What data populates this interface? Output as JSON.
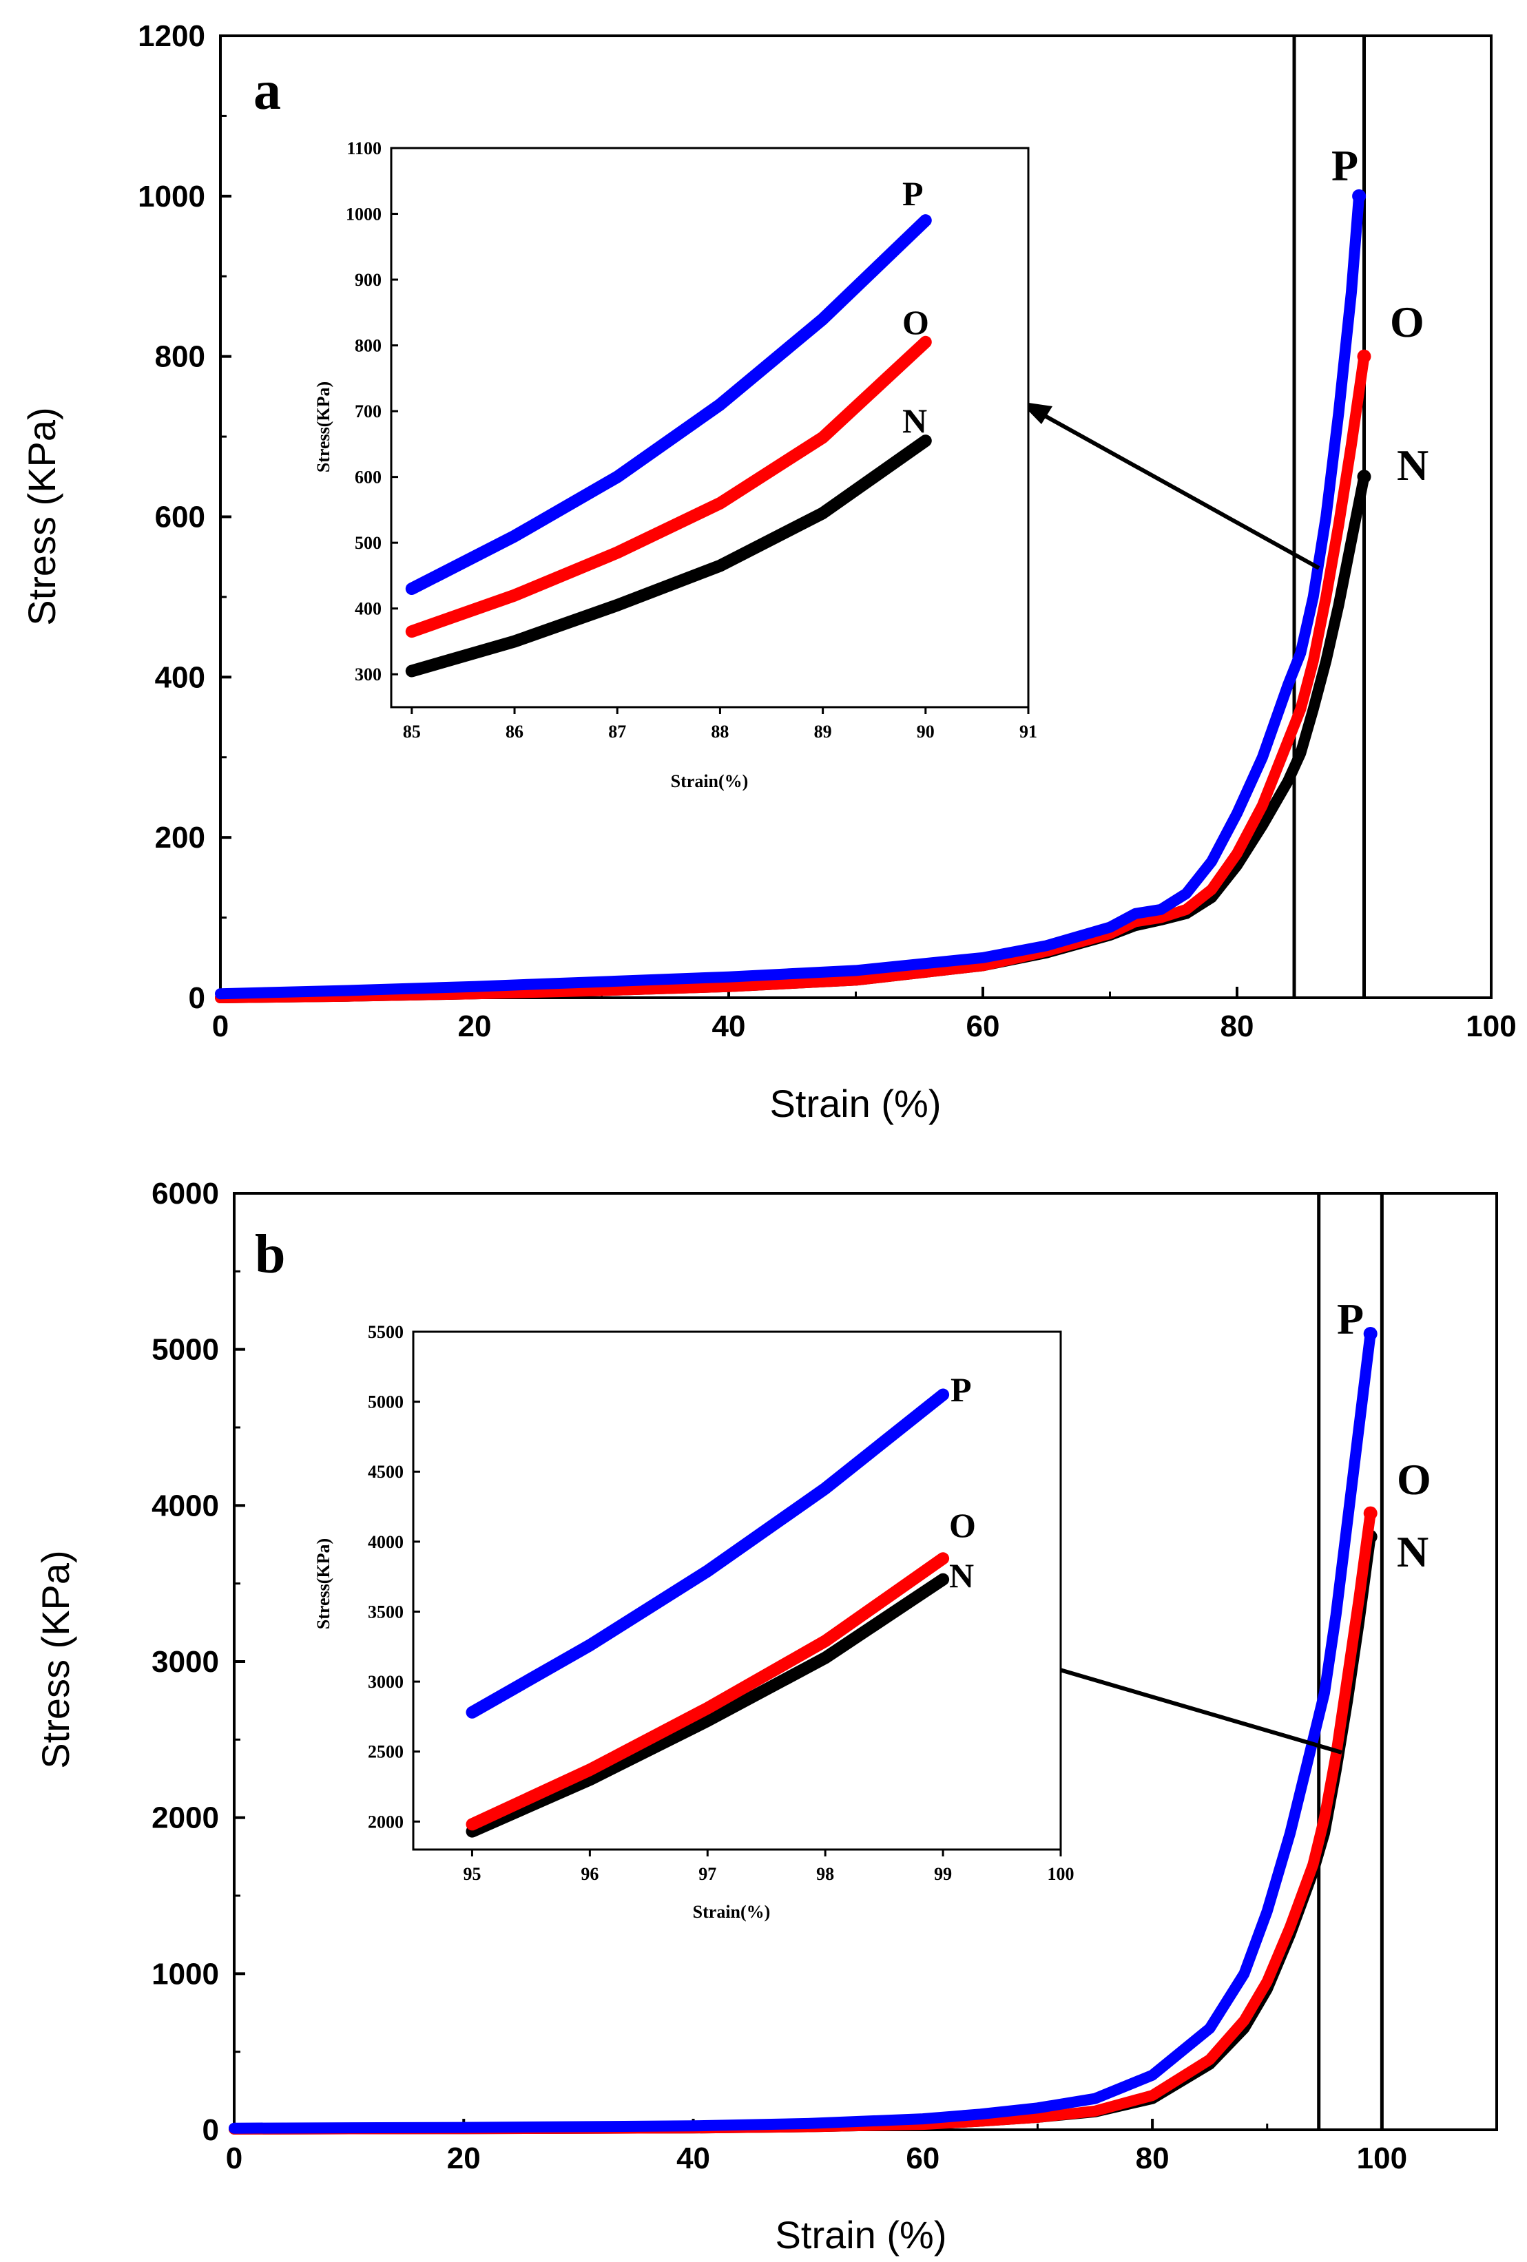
{
  "chart_data": [
    {
      "panel": "a",
      "type": "line",
      "xlabel": "Strain (%)",
      "ylabel": "Stress (KPa)",
      "xlim": [
        0,
        100
      ],
      "ylim": [
        0,
        1200
      ],
      "xticks": [
        0,
        20,
        40,
        60,
        80,
        100
      ],
      "yticks": [
        0,
        200,
        400,
        600,
        800,
        1000,
        1200
      ],
      "vlines": [
        84.5,
        90
      ],
      "series": [
        {
          "name": "P",
          "color": "#0000ff",
          "x": [
            0,
            10,
            20,
            30,
            40,
            50,
            60,
            65,
            70,
            72,
            74,
            76,
            78,
            80,
            82,
            84,
            85,
            86,
            87,
            88,
            89,
            89.6
          ],
          "y": [
            5,
            9,
            14,
            20,
            26,
            34,
            50,
            65,
            88,
            105,
            110,
            130,
            170,
            230,
            300,
            390,
            430,
            500,
            600,
            730,
            880,
            1000
          ]
        },
        {
          "name": "O",
          "color": "#ff0000",
          "x": [
            0,
            10,
            20,
            30,
            40,
            50,
            60,
            65,
            70,
            72,
            74,
            76,
            78,
            80,
            82,
            84,
            85,
            86,
            87,
            88,
            89,
            90
          ],
          "y": [
            0,
            2,
            5,
            9,
            14,
            22,
            40,
            58,
            80,
            95,
            100,
            110,
            135,
            180,
            240,
            320,
            360,
            420,
            500,
            590,
            690,
            800
          ]
        },
        {
          "name": "N",
          "color": "#000000",
          "x": [
            0,
            10,
            20,
            30,
            40,
            50,
            60,
            65,
            70,
            72,
            74,
            76,
            78,
            80,
            82,
            84,
            85,
            86,
            87,
            88,
            89,
            90
          ],
          "y": [
            0,
            2,
            5,
            9,
            14,
            22,
            40,
            56,
            78,
            90,
            97,
            105,
            125,
            165,
            215,
            270,
            305,
            360,
            420,
            490,
            570,
            650
          ]
        }
      ],
      "inset": {
        "xlabel": "Strain(%)",
        "ylabel": "Stress(KPa)",
        "xlim": [
          84.8,
          91
        ],
        "ylim": [
          250,
          1100
        ],
        "xticks": [
          85,
          86,
          87,
          88,
          89,
          90,
          91
        ],
        "yticks": [
          300,
          400,
          500,
          600,
          700,
          800,
          900,
          1000,
          1100
        ],
        "series": [
          {
            "name": "P",
            "color": "#0000ff",
            "x": [
              85,
              86,
              87,
              88,
              89,
              90
            ],
            "y": [
              430,
              510,
              600,
              710,
              840,
              990
            ]
          },
          {
            "name": "O",
            "color": "#ff0000",
            "x": [
              85,
              86,
              87,
              88,
              89,
              90
            ],
            "y": [
              365,
              420,
              485,
              560,
              660,
              805
            ]
          },
          {
            "name": "N",
            "color": "#000000",
            "x": [
              85,
              86,
              87,
              88,
              89,
              90
            ],
            "y": [
              305,
              350,
              405,
              465,
              545,
              655
            ]
          }
        ]
      }
    },
    {
      "panel": "b",
      "type": "line",
      "xlabel": "Strain (%)",
      "ylabel": "Stress (KPa)",
      "xlim": [
        0,
        110
      ],
      "ylim": [
        0,
        6000
      ],
      "xticks": [
        0,
        20,
        40,
        60,
        80,
        100
      ],
      "yticks": [
        0,
        1000,
        2000,
        3000,
        4000,
        5000,
        6000
      ],
      "vlines": [
        94.5,
        100
      ],
      "series": [
        {
          "name": "P",
          "color": "#0000ff",
          "x": [
            0,
            20,
            40,
            50,
            60,
            65,
            70,
            75,
            80,
            85,
            88,
            90,
            92,
            94,
            95,
            96,
            97,
            98,
            99
          ],
          "y": [
            10,
            15,
            25,
            40,
            70,
            100,
            140,
            200,
            350,
            650,
            1000,
            1400,
            1900,
            2500,
            2800,
            3300,
            3900,
            4500,
            5100
          ]
        },
        {
          "name": "O",
          "color": "#ff0000",
          "x": [
            0,
            20,
            40,
            50,
            60,
            65,
            70,
            75,
            80,
            85,
            88,
            90,
            92,
            94,
            95,
            96,
            97,
            98,
            99
          ],
          "y": [
            5,
            8,
            12,
            20,
            35,
            55,
            80,
            120,
            220,
            450,
            700,
            950,
            1300,
            1700,
            2000,
            2400,
            2900,
            3400,
            3950
          ]
        },
        {
          "name": "N",
          "color": "#000000",
          "x": [
            0,
            20,
            40,
            50,
            60,
            65,
            70,
            75,
            80,
            85,
            88,
            90,
            92,
            94,
            95,
            96,
            97,
            98,
            99
          ],
          "y": [
            5,
            8,
            12,
            20,
            35,
            55,
            80,
            115,
            200,
            420,
            650,
            900,
            1250,
            1650,
            1900,
            2300,
            2750,
            3250,
            3800
          ]
        }
      ],
      "inset": {
        "xlabel": "Strain(%)",
        "ylabel": "Stress(KPa)",
        "xlim": [
          94.5,
          100
        ],
        "ylim": [
          1800,
          5500
        ],
        "xticks": [
          95,
          96,
          97,
          98,
          99,
          100
        ],
        "yticks": [
          2000,
          2500,
          3000,
          3500,
          4000,
          4500,
          5000,
          5500
        ],
        "series": [
          {
            "name": "P",
            "color": "#0000ff",
            "x": [
              95,
              96,
              97,
              98,
              99
            ],
            "y": [
              2780,
              3260,
              3790,
              4380,
              5050
            ]
          },
          {
            "name": "O",
            "color": "#ff0000",
            "x": [
              95,
              96,
              97,
              98,
              99
            ],
            "y": [
              1980,
              2370,
              2810,
              3290,
              3880
            ]
          },
          {
            "name": "N",
            "color": "#000000",
            "x": [
              95,
              96,
              97,
              98,
              99
            ],
            "y": [
              1930,
              2300,
              2720,
              3170,
              3730
            ]
          }
        ]
      }
    }
  ]
}
